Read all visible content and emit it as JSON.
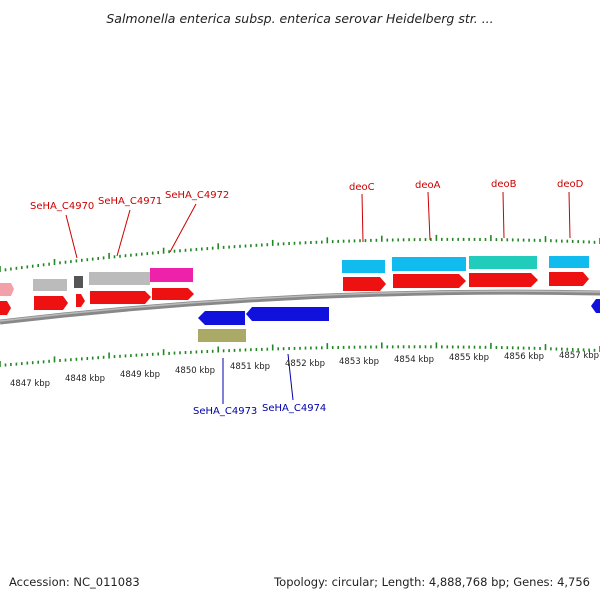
{
  "title": "Salmonella enterica subsp. enterica serovar Heidelberg str. ...",
  "footer": {
    "accession": "Accession: NC_011083",
    "summary": "Topology: circular; Length: 4,888,768 bp; Genes: 4,756"
  },
  "colors": {
    "red": "#ee1111",
    "grey": "#bbbbbb",
    "dark_grey": "#666666",
    "magenta": "#ee22aa",
    "cyan": "#11bbee",
    "teal": "#22ccbb",
    "blue": "#1111dd",
    "olive": "#aaaa66",
    "tick_green": "#228822",
    "label_red": "#cc0000",
    "label_blue": "#0000aa"
  },
  "axis_ticks": [
    "4847 kbp",
    "4848 kbp",
    "4849 kbp",
    "4850 kbp",
    "4851 kbp",
    "4852 kbp",
    "4853 kbp",
    "4854 kbp",
    "4855 kbp",
    "4856 kbp",
    "4857 kbp"
  ],
  "forward_labels": [
    "SeHA_C4970",
    "SeHA_C4971",
    "SeHA_C4972",
    "deoC",
    "deoA",
    "deoB",
    "deoD"
  ],
  "reverse_labels": [
    "SeHA_C4973",
    "SeHA_C4974"
  ]
}
